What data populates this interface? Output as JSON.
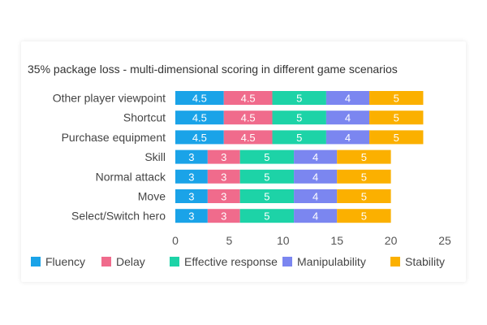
{
  "chart_data": {
    "type": "bar",
    "orientation": "horizontal",
    "stacked": true,
    "title": "35% package loss - multi-dimensional scoring in different game scenarios",
    "categories": [
      "Other player viewpoint",
      "Shortcut",
      "Purchase equipment",
      "Skill",
      "Normal attack",
      "Move",
      "Select/Switch hero"
    ],
    "series": [
      {
        "name": "Fluency",
        "color": "#1aa3e8",
        "values": [
          4.5,
          4.5,
          4.5,
          3,
          3,
          3,
          3
        ],
        "labels": [
          "4.5",
          "4.5",
          "4.5",
          "3",
          "3",
          "3",
          "3"
        ]
      },
      {
        "name": "Delay",
        "color": "#f06b8c",
        "values": [
          4.5,
          4.5,
          4.5,
          3,
          3,
          3,
          3
        ],
        "labels": [
          "4.5",
          "4.5",
          "4.5",
          "3",
          "3",
          "3",
          "3"
        ]
      },
      {
        "name": "Effective response",
        "color": "#1dd3a7",
        "values": [
          5,
          5,
          5,
          5,
          5,
          5,
          5
        ],
        "labels": [
          "5",
          "5",
          "5",
          "5",
          "5",
          "5",
          "5"
        ]
      },
      {
        "name": "Manipulability",
        "color": "#7b86f0",
        "values": [
          4,
          4,
          4,
          4,
          4,
          4,
          4
        ],
        "labels": [
          "4",
          "4",
          "4",
          "4",
          "4",
          "4",
          "4"
        ]
      },
      {
        "name": "Stability",
        "color": "#fbb000",
        "values": [
          5,
          5,
          5,
          5,
          5,
          5,
          5
        ],
        "labels": [
          "5",
          "5",
          "5",
          "5",
          "5",
          "5",
          "5"
        ]
      }
    ],
    "xlim": [
      0,
      25
    ],
    "xticks": [
      0,
      5,
      10,
      15,
      20,
      25
    ],
    "xtick_labels": [
      "0",
      "5",
      "10",
      "15",
      "20",
      "25"
    ],
    "grid": false,
    "legend_position": "bottom"
  }
}
